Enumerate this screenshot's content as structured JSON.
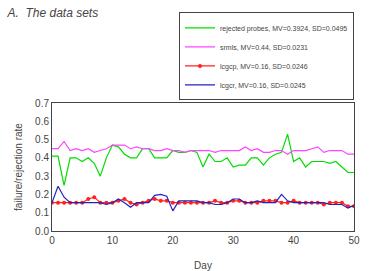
{
  "chart_data": {
    "type": "line",
    "title": "A.  The data sets",
    "xlabel": "Day",
    "ylabel": "failure/rejection rate",
    "x": [
      0,
      1,
      2,
      3,
      4,
      5,
      6,
      7,
      8,
      9,
      10,
      11,
      12,
      13,
      14,
      15,
      16,
      17,
      18,
      19,
      20,
      21,
      22,
      23,
      24,
      25,
      26,
      27,
      28,
      29,
      30,
      31,
      32,
      33,
      34,
      35,
      36,
      37,
      38,
      39,
      40,
      41,
      42,
      43,
      44,
      45,
      46,
      47,
      48,
      49,
      50
    ],
    "series": [
      {
        "name": "rejected probes, MV=0.3924, SD=0.0495",
        "color": "#00dd00",
        "values": [
          0.41,
          0.41,
          0.25,
          0.4,
          0.4,
          0.38,
          0.4,
          0.37,
          0.3,
          0.4,
          0.47,
          0.46,
          0.42,
          0.4,
          0.4,
          0.45,
          0.45,
          0.4,
          0.4,
          0.4,
          0.44,
          0.43,
          0.43,
          0.44,
          0.43,
          0.35,
          0.42,
          0.38,
          0.38,
          0.4,
          0.35,
          0.36,
          0.36,
          0.4,
          0.4,
          0.36,
          0.4,
          0.42,
          0.43,
          0.53,
          0.38,
          0.4,
          0.35,
          0.38,
          0.38,
          0.38,
          0.37,
          0.38,
          0.35,
          0.32,
          0.32
        ]
      },
      {
        "name": "srmls, MV=0.44, SD=0.0231",
        "color": "#ff44ff",
        "values": [
          0.45,
          0.45,
          0.49,
          0.44,
          0.45,
          0.44,
          0.45,
          0.43,
          0.44,
          0.45,
          0.47,
          0.47,
          0.47,
          0.45,
          0.46,
          0.45,
          0.45,
          0.44,
          0.44,
          0.45,
          0.44,
          0.44,
          0.43,
          0.44,
          0.44,
          0.44,
          0.44,
          0.43,
          0.44,
          0.44,
          0.44,
          0.44,
          0.46,
          0.44,
          0.45,
          0.43,
          0.43,
          0.44,
          0.44,
          0.42,
          0.44,
          0.44,
          0.44,
          0.45,
          0.46,
          0.43,
          0.44,
          0.44,
          0.44,
          0.42,
          0.42
        ]
      },
      {
        "name": "lcgcp, MV=0.16, SD=0.0246",
        "color": "#ff2222",
        "marker": "circle",
        "values": [
          0.155,
          0.155,
          0.155,
          0.155,
          0.155,
          0.155,
          0.175,
          0.185,
          0.155,
          0.155,
          0.155,
          0.165,
          0.175,
          0.155,
          0.145,
          0.155,
          0.165,
          0.175,
          0.165,
          0.165,
          0.155,
          0.155,
          0.155,
          0.155,
          0.155,
          0.155,
          0.155,
          0.165,
          0.155,
          0.155,
          0.165,
          0.165,
          0.155,
          0.155,
          0.155,
          0.165,
          0.165,
          0.165,
          0.155,
          0.155,
          0.165,
          0.155,
          0.155,
          0.155,
          0.155,
          0.145,
          0.155,
          0.155,
          0.155,
          0.135,
          0.135
        ]
      },
      {
        "name": "lcgcr, MV=0.16, SD=0.0245",
        "color": "#2222bb",
        "values": [
          0.155,
          0.245,
          0.185,
          0.155,
          0.155,
          0.155,
          0.155,
          0.155,
          0.155,
          0.145,
          0.155,
          0.175,
          0.155,
          0.13,
          0.155,
          0.155,
          0.155,
          0.195,
          0.2,
          0.19,
          0.11,
          0.165,
          0.165,
          0.165,
          0.165,
          0.155,
          0.155,
          0.145,
          0.145,
          0.155,
          0.175,
          0.175,
          0.155,
          0.155,
          0.165,
          0.155,
          0.155,
          0.155,
          0.2,
          0.165,
          0.155,
          0.155,
          0.155,
          0.155,
          0.155,
          0.155,
          0.145,
          0.145,
          0.145,
          0.125,
          0.14
        ]
      }
    ],
    "xlim": [
      0,
      50
    ],
    "ylim": [
      0,
      0.7
    ],
    "xticks": [
      0,
      10,
      20,
      30,
      40,
      50
    ],
    "yticks": [
      {
        "value": 0,
        "label": "0.0"
      },
      0.1,
      0.2,
      0.3,
      0.4,
      0.5,
      0.6,
      0.7
    ],
    "grid": false,
    "legend": "upper right"
  }
}
